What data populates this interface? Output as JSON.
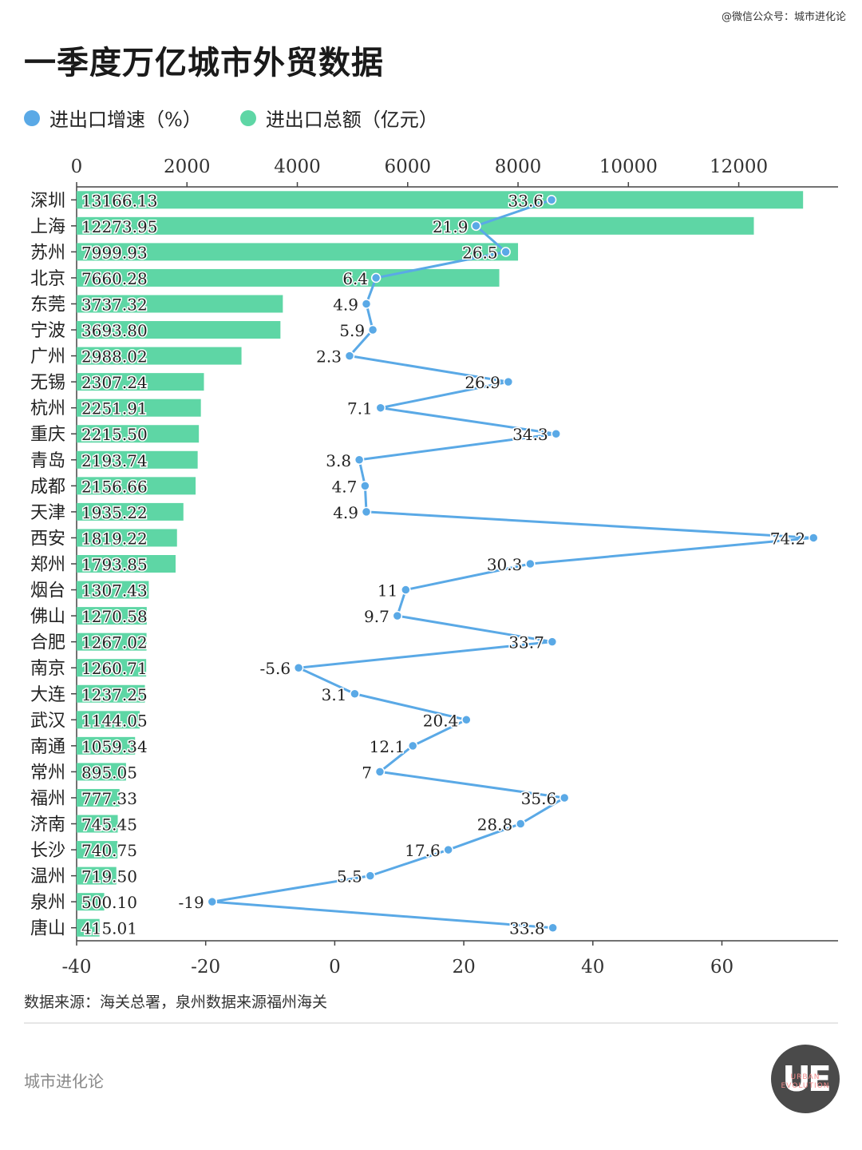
{
  "watermark": "@微信公众号：城市进化论",
  "title": "一季度万亿城市外贸数据",
  "legend": [
    {
      "label": "进出口增速（%）",
      "color": "#5aa9e6"
    },
    {
      "label": "进出口总额（亿元）",
      "color": "#5ed6a5"
    }
  ],
  "footer": {
    "source": "数据来源：海关总署，泉州数据来源福州海关",
    "brand": "城市进化论",
    "logo_letters": "UE",
    "logo_sub": "URBAN EVOLUTION"
  },
  "chart_data": {
    "type": "bar",
    "categories": [
      "深圳",
      "上海",
      "苏州",
      "北京",
      "东莞",
      "宁波",
      "广州",
      "无锡",
      "杭州",
      "重庆",
      "青岛",
      "成都",
      "天津",
      "西安",
      "郑州",
      "烟台",
      "佛山",
      "合肥",
      "南京",
      "大连",
      "武汉",
      "南通",
      "常州",
      "福州",
      "济南",
      "长沙",
      "温州",
      "泉州",
      "唐山"
    ],
    "series": [
      {
        "name": "进出口总额（亿元）",
        "type": "bar",
        "axis": "top",
        "color": "#5ed6a5",
        "labels": [
          "13166.13",
          "12273.95",
          "7999.93",
          "7660.28",
          "3737.32",
          "3693.80",
          "2988.02",
          "2307.24",
          "2251.91",
          "2215.50",
          "2193.74",
          "2156.66",
          "1935.22",
          "1819.22",
          "1793.85",
          "1307.43",
          "1270.58",
          "1267.02",
          "1260.71",
          "1237.25",
          "1144.05",
          "1059.34",
          "895.05",
          "777.33",
          "745.45",
          "740.75",
          "719.50",
          "500.10",
          "415.01"
        ],
        "values": [
          13166.13,
          12273.95,
          7999.93,
          7660.28,
          3737.32,
          3693.8,
          2988.02,
          2307.24,
          2251.91,
          2215.5,
          2193.74,
          2156.66,
          1935.22,
          1819.22,
          1793.85,
          1307.43,
          1270.58,
          1267.02,
          1260.71,
          1237.25,
          1144.05,
          1059.34,
          895.05,
          777.33,
          745.45,
          740.75,
          719.5,
          500.1,
          415.01
        ]
      },
      {
        "name": "进出口增速（%）",
        "type": "line",
        "axis": "bottom",
        "color": "#5aa9e6",
        "labels": [
          "33.6",
          "21.9",
          "26.5",
          "6.4",
          "4.9",
          "5.9",
          "2.3",
          "26.9",
          "7.1",
          "34.3",
          "3.8",
          "4.7",
          "4.9",
          "74.2",
          "30.3",
          "11",
          "9.7",
          "33.7",
          "-5.6",
          "3.1",
          "20.4",
          "12.1",
          "7",
          "35.6",
          "28.8",
          "17.6",
          "5.5",
          "-19",
          "33.8"
        ],
        "values": [
          33.6,
          21.9,
          26.5,
          6.4,
          4.9,
          5.9,
          2.3,
          26.9,
          7.1,
          34.3,
          3.8,
          4.7,
          4.9,
          74.2,
          30.3,
          11,
          9.7,
          33.7,
          -5.6,
          3.1,
          20.4,
          12.1,
          7,
          35.6,
          28.8,
          17.6,
          5.5,
          -19,
          33.8
        ]
      }
    ],
    "top_axis": {
      "range": [
        0,
        13800
      ],
      "ticks": [
        "0",
        "2000",
        "4000",
        "6000",
        "8000",
        "10000",
        "12000"
      ],
      "tick_values": [
        0,
        2000,
        4000,
        6000,
        8000,
        10000,
        12000
      ]
    },
    "bottom_axis": {
      "range": [
        -40,
        78
      ],
      "ticks": [
        "-40",
        "-20",
        "0",
        "20",
        "40",
        "60"
      ],
      "tick_values": [
        -40,
        -20,
        0,
        20,
        40,
        60
      ]
    },
    "grid": false,
    "legend_position": "top-left"
  }
}
